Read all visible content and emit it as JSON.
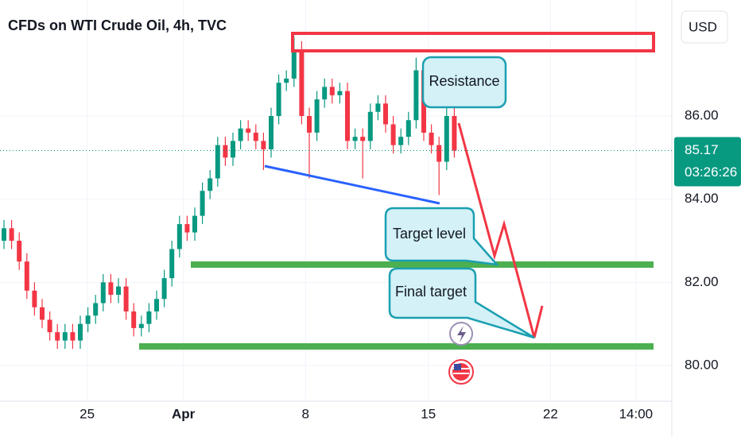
{
  "chart_data": {
    "type": "candlestick",
    "title": "CFDs on WTI Crude Oil, 4h, TVC",
    "currency": "USD",
    "up_color": "#089981",
    "down_color": "#f23645",
    "open": [
      83.0,
      83.3,
      83.0,
      82.5,
      81.8,
      81.4,
      81.1,
      80.8,
      80.6,
      80.8,
      80.6,
      81.0,
      81.2,
      81.5,
      82.0,
      81.7,
      81.9,
      81.3,
      80.9,
      81.0,
      81.3,
      81.6,
      82.1,
      82.8,
      83.4,
      83.2,
      83.6,
      84.2,
      84.5,
      85.3,
      85.0,
      85.4,
      85.7,
      85.6,
      85.4,
      85.2,
      86.0,
      86.8,
      86.9,
      87.6,
      86.0,
      85.6,
      86.4,
      86.7,
      86.5,
      86.6,
      85.4,
      85.5,
      85.4,
      86.1,
      86.3,
      85.8,
      85.3,
      85.5,
      85.9,
      87.1,
      85.6,
      85.3,
      84.9,
      86.0
    ],
    "high": [
      83.5,
      83.5,
      83.2,
      82.7,
      82.0,
      81.6,
      81.3,
      81.0,
      81.0,
      81.0,
      81.2,
      81.4,
      81.7,
      82.2,
      82.2,
      82.1,
      82.1,
      81.5,
      81.2,
      81.5,
      81.8,
      82.3,
      83.0,
      83.6,
      83.6,
      83.8,
      84.4,
      84.7,
      85.5,
      85.5,
      85.6,
      85.9,
      85.9,
      85.8,
      85.6,
      86.2,
      87.0,
      87.1,
      87.9,
      87.8,
      86.2,
      86.6,
      86.9,
      86.9,
      86.8,
      86.8,
      85.7,
      85.7,
      86.3,
      86.5,
      86.5,
      86.0,
      85.7,
      86.1,
      87.4,
      87.3,
      85.8,
      85.5,
      86.2,
      86.2
    ],
    "low": [
      82.8,
      82.8,
      82.3,
      81.6,
      81.2,
      80.9,
      80.6,
      80.4,
      80.4,
      80.4,
      80.4,
      80.8,
      81.0,
      81.3,
      81.5,
      81.5,
      81.1,
      80.7,
      80.7,
      80.8,
      81.1,
      81.4,
      81.9,
      82.6,
      83.0,
      83.0,
      83.4,
      84.0,
      84.3,
      84.8,
      84.8,
      85.2,
      85.4,
      85.2,
      84.7,
      85.0,
      85.8,
      86.6,
      86.7,
      85.8,
      84.5,
      85.4,
      86.2,
      86.3,
      86.3,
      85.2,
      85.2,
      84.5,
      85.2,
      85.9,
      85.6,
      85.1,
      85.1,
      85.3,
      85.7,
      85.4,
      85.1,
      84.1,
      84.7,
      85.0
    ],
    "close": [
      83.3,
      83.0,
      82.5,
      81.8,
      81.4,
      81.1,
      80.8,
      80.6,
      80.8,
      80.6,
      81.0,
      81.2,
      81.5,
      82.0,
      81.7,
      81.9,
      81.3,
      80.9,
      81.0,
      81.3,
      81.6,
      82.1,
      82.8,
      83.4,
      83.2,
      83.6,
      84.2,
      84.5,
      85.3,
      85.0,
      85.4,
      85.7,
      85.6,
      85.4,
      85.2,
      86.0,
      86.8,
      86.9,
      87.6,
      86.0,
      85.6,
      86.4,
      86.7,
      86.5,
      86.6,
      85.4,
      85.5,
      85.4,
      86.1,
      86.3,
      85.8,
      85.3,
      85.5,
      85.9,
      87.1,
      85.6,
      85.3,
      84.9,
      86.0,
      85.17
    ],
    "xlim": [
      -0.52,
      87.5
    ],
    "xticks": [
      {
        "value": 10.9,
        "label": "25"
      },
      {
        "value": 23.5,
        "label": "Apr"
      },
      {
        "value": 39.5,
        "label": "8"
      },
      {
        "value": 55.6,
        "label": "15"
      },
      {
        "value": 71.6,
        "label": "22"
      },
      {
        "value": 82.8,
        "label": "14:00"
      }
    ],
    "ylim": [
      79.14,
      88.79
    ],
    "yticks": [
      {
        "value": 80,
        "label": "80.00"
      },
      {
        "value": 82,
        "label": "82.00"
      },
      {
        "value": 84,
        "label": "84.00"
      },
      {
        "value": 86,
        "label": "86.00"
      }
    ],
    "grid": true,
    "last_price": {
      "value": 85.17,
      "label": "85.17"
    },
    "countdown": "03:26:26",
    "annotations": [
      "Resistance",
      "Target level",
      "Final target"
    ]
  }
}
